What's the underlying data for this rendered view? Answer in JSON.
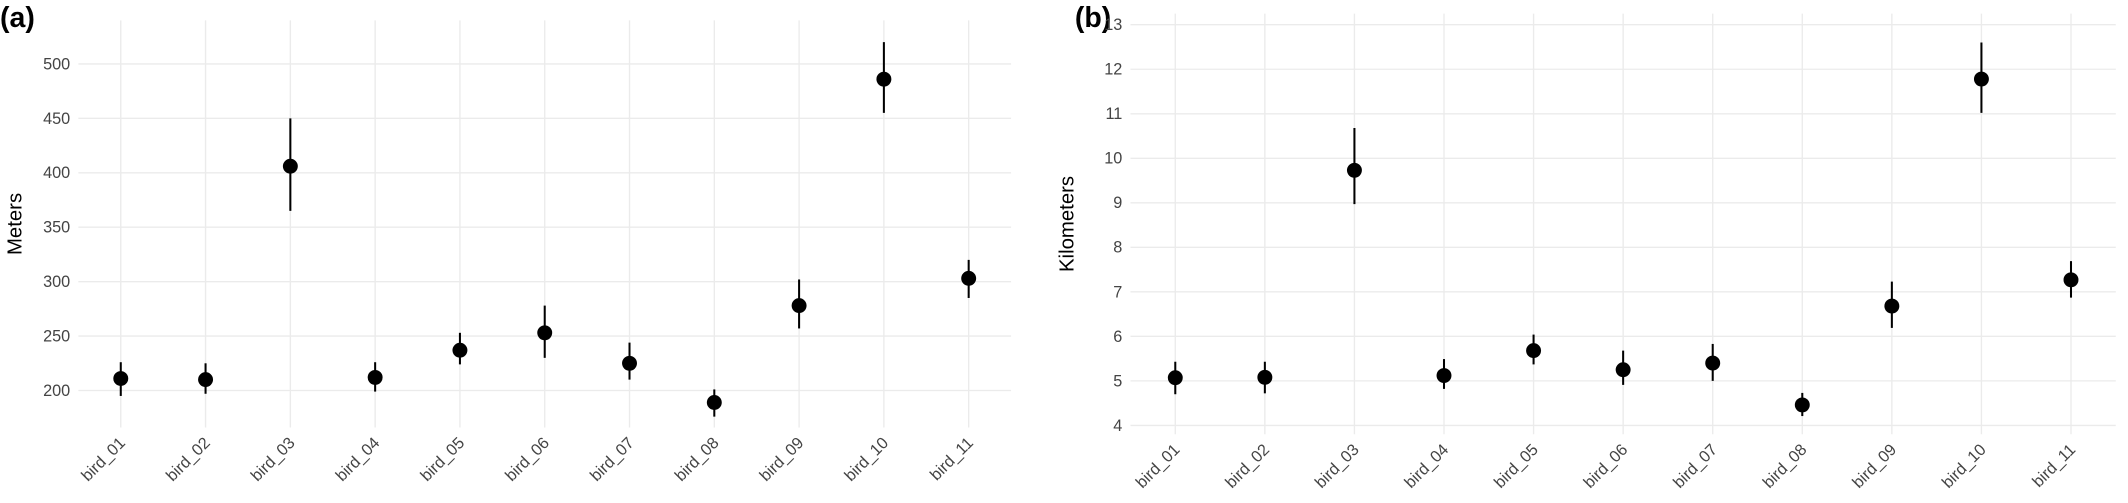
{
  "chart_data": [
    {
      "type": "errorbar",
      "title": "(a)",
      "y_label": "Meters",
      "color": "#000000",
      "grid": true,
      "categories": [
        "bird_01",
        "bird_02",
        "bird_03",
        "bird_04",
        "bird_05",
        "bird_06",
        "bird_07",
        "bird_08",
        "bird_09",
        "bird_10",
        "bird_11"
      ],
      "values": [
        211,
        210,
        406,
        212,
        237,
        253,
        225,
        189,
        278,
        486,
        303
      ],
      "lower": [
        195,
        197,
        365,
        199,
        224,
        230,
        210,
        176,
        257,
        455,
        285
      ],
      "upper": [
        226,
        225,
        450,
        226,
        253,
        278,
        244,
        201,
        302,
        520,
        320
      ],
      "ylim": [
        166,
        540
      ],
      "yticks": [
        200,
        250,
        300,
        350,
        400,
        450,
        500
      ]
    },
    {
      "type": "errorbar",
      "title": "(b)",
      "y_label": "Kilometers",
      "color": "#000000",
      "grid": true,
      "categories": [
        "bird_01",
        "bird_02",
        "bird_03",
        "bird_04",
        "bird_05",
        "bird_06",
        "bird_07",
        "bird_08",
        "bird_09",
        "bird_10",
        "bird_11"
      ],
      "values": [
        5.07,
        5.08,
        9.73,
        5.12,
        5.68,
        5.25,
        5.4,
        4.46,
        6.68,
        11.78,
        7.27
      ],
      "lower": [
        4.7,
        4.72,
        8.97,
        4.82,
        5.37,
        4.91,
        5.0,
        4.21,
        6.19,
        11.02,
        6.87
      ],
      "upper": [
        5.43,
        5.43,
        10.68,
        5.49,
        6.04,
        5.68,
        5.83,
        4.73,
        7.23,
        12.6,
        7.69
      ],
      "ylim": [
        3.8,
        13.25
      ],
      "yticks": [
        4,
        5,
        6,
        7,
        8,
        9,
        10,
        11,
        12,
        13
      ]
    }
  ]
}
